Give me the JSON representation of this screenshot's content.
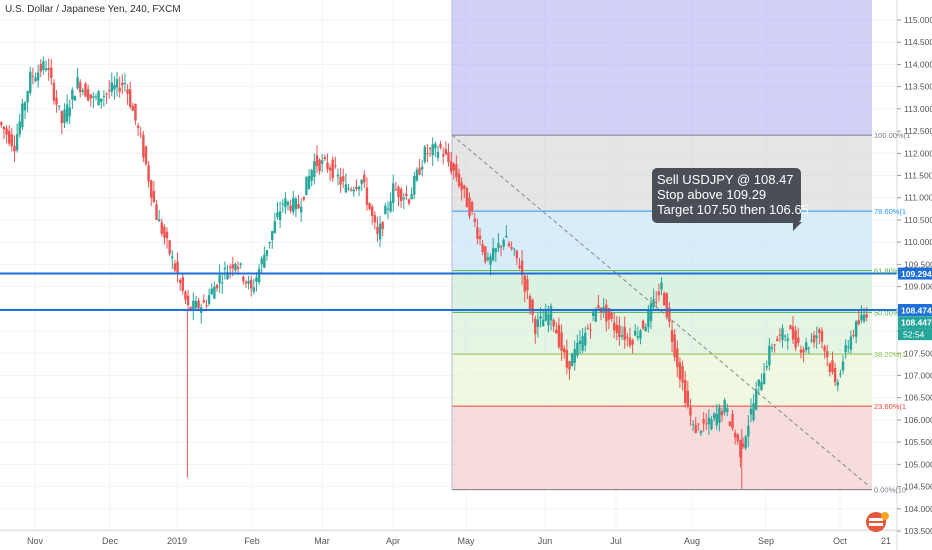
{
  "header": {
    "symbol_title": "U.S. Dollar / Japanese Yen, 240, FXCM"
  },
  "callout": {
    "lines": [
      "Sell USDJPY @ 108.47",
      "Stop above 109.29",
      "Target 107.50 then 106.65"
    ]
  },
  "axis": {
    "price_ticks": [
      "115.000",
      "114.500",
      "114.000",
      "113.500",
      "113.000",
      "112.500",
      "112.000",
      "111.500",
      "111.000",
      "110.500",
      "110.000",
      "109.500",
      "109.000",
      "108.500",
      "108.000",
      "107.500",
      "107.000",
      "106.500",
      "106.000",
      "105.500",
      "105.000",
      "104.500",
      "104.000",
      "103.500"
    ],
    "time_ticks": [
      "Nov",
      "Dec",
      "2019",
      "Feb",
      "Mar",
      "Apr",
      "May",
      "Jun",
      "Jul",
      "Aug",
      "Sep",
      "Oct",
      "21"
    ]
  },
  "fib": {
    "levels": [
      {
        "label": "100.00%(1",
        "value": 112.41,
        "color": "#787b86"
      },
      {
        "label": "78.60%(1",
        "value": 110.7,
        "color": "#2196f3"
      },
      {
        "label": "61.80%(1",
        "value": 109.36,
        "color": "#4caf50"
      },
      {
        "label": "50.00%(",
        "value": 108.42,
        "color": "#4caf50"
      },
      {
        "label": "38.20%(1",
        "value": 107.48,
        "color": "#8bc34a"
      },
      {
        "label": "23.60%(1",
        "value": 106.31,
        "color": "#f44336"
      },
      {
        "label": "0.00%(10",
        "value": 104.43,
        "color": "#787b86"
      }
    ]
  },
  "price_labels": {
    "stop_level": "109.294",
    "entry_level": "108.474",
    "last_price": "108.447",
    "countdown": "52:54"
  },
  "chart_data": {
    "type": "line",
    "instrument": "USDJPY",
    "x": [
      "Oct-25",
      "Nov-01",
      "Nov-08",
      "Nov-12",
      "Nov-20",
      "Nov-26",
      "Dec-03",
      "Dec-10",
      "Dec-14",
      "Dec-20",
      "Dec-27",
      "Jan-02",
      "Jan-03",
      "Jan-07",
      "Jan-14",
      "Jan-22",
      "Feb-01",
      "Feb-07",
      "Feb-14",
      "Feb-21",
      "Mar-01",
      "Mar-06",
      "Mar-12",
      "Mar-18",
      "Mar-25",
      "Apr-01",
      "Apr-08",
      "Apr-15",
      "Apr-24",
      "Apr-29",
      "May-06",
      "May-13",
      "May-20",
      "May-27",
      "Jun-04",
      "Jun-11",
      "Jun-18",
      "Jun-25",
      "Jul-01",
      "Jul-08",
      "Jul-15",
      "Jul-22",
      "Jul-30",
      "Aug-02",
      "Aug-07",
      "Aug-13",
      "Aug-20",
      "Aug-26",
      "Sep-02",
      "Sep-09",
      "Sep-16",
      "Sep-23",
      "Sep-30",
      "Oct-03",
      "Oct-10",
      "Oct-15"
    ],
    "values": [
      112.7,
      112.2,
      113.7,
      114.0,
      112.7,
      113.6,
      113.2,
      113.4,
      113.6,
      112.3,
      110.6,
      109.6,
      108.5,
      108.6,
      109.2,
      109.6,
      108.9,
      109.9,
      110.9,
      110.8,
      111.8,
      111.7,
      111.2,
      111.4,
      110.1,
      111.2,
      111.0,
      112.0,
      112.1,
      111.5,
      110.6,
      109.5,
      110.1,
      109.5,
      108.1,
      108.4,
      107.2,
      107.8,
      108.6,
      108.1,
      107.8,
      108.2,
      109.0,
      107.3,
      105.8,
      105.9,
      106.3,
      105.3,
      106.6,
      107.7,
      108.0,
      107.6,
      108.0,
      106.8,
      107.9,
      108.45
    ],
    "ylim": [
      103.5,
      115.0
    ],
    "fib_anchor_high": 112.41,
    "fib_anchor_low": 104.43,
    "horizontal_lines": [
      109.294,
      108.474
    ]
  }
}
